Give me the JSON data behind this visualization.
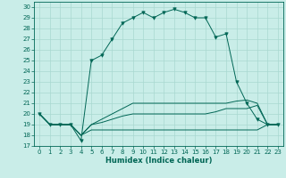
{
  "xlabel": "Humidex (Indice chaleur)",
  "bg_color": "#c9ede8",
  "line_color": "#006655",
  "grid_color": "#a8d8d0",
  "xlim": [
    -0.5,
    23.5
  ],
  "ylim": [
    17,
    30.5
  ],
  "xticks": [
    0,
    1,
    2,
    3,
    4,
    5,
    6,
    7,
    8,
    9,
    10,
    11,
    12,
    13,
    14,
    15,
    16,
    17,
    18,
    19,
    20,
    21,
    22,
    23
  ],
  "yticks": [
    17,
    18,
    19,
    20,
    21,
    22,
    23,
    24,
    25,
    26,
    27,
    28,
    29,
    30
  ],
  "series_main": [
    20,
    19,
    19,
    19,
    17.5,
    25,
    25.5,
    27,
    28.5,
    29,
    29.5,
    29,
    29.5,
    29.8,
    29.5,
    29,
    29,
    27.2,
    27.5,
    23,
    21,
    19.5,
    19,
    19
  ],
  "series2": [
    20,
    19,
    19,
    19,
    18,
    18.5,
    18.5,
    18.5,
    18.5,
    18.5,
    18.5,
    18.5,
    18.5,
    18.5,
    18.5,
    18.5,
    18.5,
    18.5,
    18.5,
    18.5,
    18.5,
    18.5,
    19,
    19
  ],
  "series3": [
    20,
    19,
    19,
    19,
    18,
    19,
    19.2,
    19.5,
    19.8,
    20,
    20,
    20,
    20,
    20,
    20,
    20,
    20,
    20.2,
    20.5,
    20.5,
    20.5,
    20.8,
    19,
    19
  ],
  "series4": [
    20,
    19,
    19,
    19,
    18,
    19,
    19.5,
    20,
    20.5,
    21,
    21,
    21,
    21,
    21,
    21,
    21,
    21,
    21,
    21,
    21.2,
    21.3,
    21,
    19,
    19
  ]
}
